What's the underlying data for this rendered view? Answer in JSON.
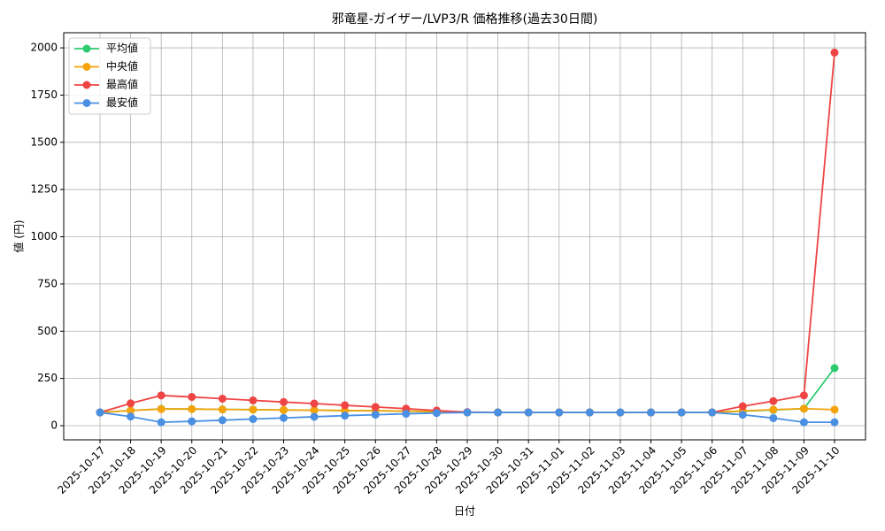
{
  "chart_data": {
    "type": "line",
    "title": "邪竜星-ガイザー/LVP3/R 価格推移(過去30日間)",
    "x_label": "日付",
    "y_label": "値 (円)",
    "categories": [
      "2025-10-17",
      "2025-10-18",
      "2025-10-19",
      "2025-10-20",
      "2025-10-21",
      "2025-10-22",
      "2025-10-23",
      "2025-10-24",
      "2025-10-25",
      "2025-10-26",
      "2025-10-27",
      "2025-10-28",
      "2025-10-29",
      "2025-10-30",
      "2025-10-31",
      "2025-11-01",
      "2025-11-02",
      "2025-11-03",
      "2025-11-04",
      "2025-11-05",
      "2025-11-06",
      "2025-11-07",
      "2025-11-08",
      "2025-11-09",
      "2025-11-10"
    ],
    "series": [
      {
        "name": "平均値",
        "color": "#2ecc71",
        "values": [
          70,
          80,
          89,
          88,
          86,
          85,
          83,
          82,
          80,
          79,
          77,
          74,
          70,
          70,
          70,
          70,
          70,
          70,
          70,
          70,
          70,
          77,
          83,
          90,
          305
        ]
      },
      {
        "name": "中央値",
        "color": "#f5a30a",
        "values": [
          70,
          80,
          88,
          88,
          86,
          85,
          83,
          82,
          80,
          79,
          77,
          75,
          70,
          70,
          70,
          70,
          70,
          70,
          70,
          70,
          70,
          78,
          85,
          90,
          85
        ]
      },
      {
        "name": "最高値",
        "color": "#ef4444",
        "values": [
          70,
          118,
          160,
          152,
          143,
          134,
          125,
          117,
          108,
          99,
          90,
          80,
          72,
          70,
          70,
          70,
          70,
          70,
          70,
          70,
          70,
          103,
          130,
          160,
          1975
        ]
      },
      {
        "name": "最安値",
        "color": "#4a90e2",
        "values": [
          70,
          48,
          18,
          23,
          29,
          35,
          41,
          47,
          53,
          58,
          63,
          67,
          70,
          70,
          70,
          70,
          70,
          70,
          70,
          70,
          70,
          58,
          40,
          18,
          18
        ]
      }
    ],
    "ylim": [
      -75,
      2080
    ],
    "yticks": [
      0,
      250,
      500,
      750,
      1000,
      1250,
      1500,
      1750,
      2000
    ],
    "grid": true,
    "legend": "upper-left"
  }
}
